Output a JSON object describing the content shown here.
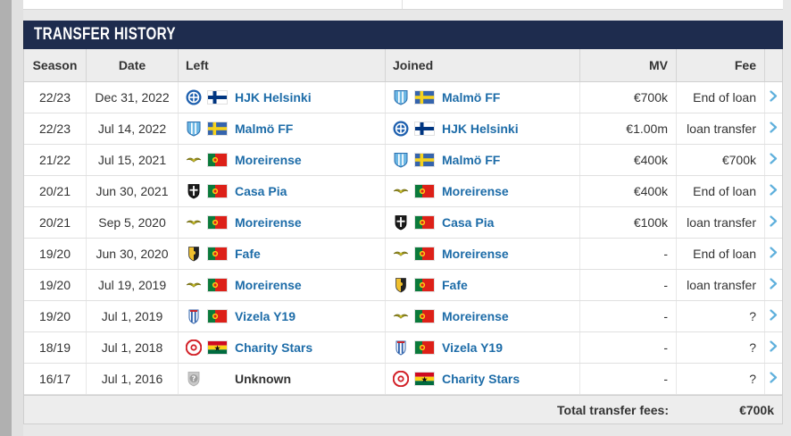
{
  "colors": {
    "title_bar_bg": "#1e2c4e",
    "link_blue": "#1d6ca8",
    "chevron_blue": "#5fb0dc",
    "page_bg": "#e8e8e8"
  },
  "module": {
    "title": "TRANSFER HISTORY"
  },
  "table": {
    "columns": [
      "Season",
      "Date",
      "Left",
      "Joined",
      "MV",
      "Fee"
    ],
    "rows": [
      {
        "season": "22/23",
        "date": "Dec 31, 2022",
        "left": {
          "name": "HJK Helsinki",
          "logo": "hjk-helsinki",
          "flag": "finland"
        },
        "joined": {
          "name": "Malmö FF",
          "logo": "malmo-ff",
          "flag": "sweden"
        },
        "mv": "€700k",
        "fee": "End of loan"
      },
      {
        "season": "22/23",
        "date": "Jul 14, 2022",
        "left": {
          "name": "Malmö FF",
          "logo": "malmo-ff",
          "flag": "sweden"
        },
        "joined": {
          "name": "HJK Helsinki",
          "logo": "hjk-helsinki",
          "flag": "finland"
        },
        "mv": "€1.00m",
        "fee": "loan transfer"
      },
      {
        "season": "21/22",
        "date": "Jul 15, 2021",
        "left": {
          "name": "Moreirense",
          "logo": "moreirense",
          "flag": "portugal"
        },
        "joined": {
          "name": "Malmö FF",
          "logo": "malmo-ff",
          "flag": "sweden"
        },
        "mv": "€400k",
        "fee": "€700k"
      },
      {
        "season": "20/21",
        "date": "Jun 30, 2021",
        "left": {
          "name": "Casa Pia",
          "logo": "casa-pia",
          "flag": "portugal"
        },
        "joined": {
          "name": "Moreirense",
          "logo": "moreirense",
          "flag": "portugal"
        },
        "mv": "€400k",
        "fee": "End of loan"
      },
      {
        "season": "20/21",
        "date": "Sep 5, 2020",
        "left": {
          "name": "Moreirense",
          "logo": "moreirense",
          "flag": "portugal"
        },
        "joined": {
          "name": "Casa Pia",
          "logo": "casa-pia",
          "flag": "portugal"
        },
        "mv": "€100k",
        "fee": "loan transfer"
      },
      {
        "season": "19/20",
        "date": "Jun 30, 2020",
        "left": {
          "name": "Fafe",
          "logo": "fafe",
          "flag": "portugal"
        },
        "joined": {
          "name": "Moreirense",
          "logo": "moreirense",
          "flag": "portugal"
        },
        "mv": "-",
        "fee": "End of loan"
      },
      {
        "season": "19/20",
        "date": "Jul 19, 2019",
        "left": {
          "name": "Moreirense",
          "logo": "moreirense",
          "flag": "portugal"
        },
        "joined": {
          "name": "Fafe",
          "logo": "fafe",
          "flag": "portugal"
        },
        "mv": "-",
        "fee": "loan transfer"
      },
      {
        "season": "19/20",
        "date": "Jul 1, 2019",
        "left": {
          "name": "Vizela Y19",
          "logo": "vizela",
          "flag": "portugal"
        },
        "joined": {
          "name": "Moreirense",
          "logo": "moreirense",
          "flag": "portugal"
        },
        "mv": "-",
        "fee": "?"
      },
      {
        "season": "18/19",
        "date": "Jul 1, 2018",
        "left": {
          "name": "Charity Stars",
          "logo": "charity-stars",
          "flag": "ghana"
        },
        "joined": {
          "name": "Vizela Y19",
          "logo": "vizela",
          "flag": "portugal"
        },
        "mv": "-",
        "fee": "?"
      },
      {
        "season": "16/17",
        "date": "Jul 1, 2016",
        "left": {
          "name": "Unknown",
          "logo": "unknown",
          "flag": null,
          "is_link": false
        },
        "joined": {
          "name": "Charity Stars",
          "logo": "charity-stars",
          "flag": "ghana"
        },
        "mv": "-",
        "fee": "?"
      }
    ],
    "footer": {
      "label": "Total transfer fees:",
      "value": "€700k"
    }
  }
}
